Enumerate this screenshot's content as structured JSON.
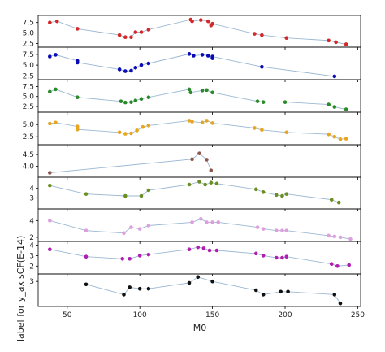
{
  "chart_data": {
    "type": "line",
    "xlabel": "M0",
    "ylabel": "label for y_axis",
    "ylabel_offset_text": "CF(E-14)",
    "x_ticks": [
      50,
      100,
      150,
      200,
      250
    ],
    "xlim": [
      30,
      252
    ],
    "grid": false,
    "line_color": "#9bb8d3",
    "panels": [
      {
        "color": "#d62728",
        "ylim": [
          2.0,
          8.8
        ],
        "yticks": [
          2.5,
          5.0,
          7.5
        ],
        "tick_labels": [
          "2.5",
          "5.0",
          "7.5"
        ],
        "points": [
          [
            38,
            7.5
          ],
          [
            43,
            7.8
          ],
          [
            57,
            6.0
          ],
          [
            86,
            4.5
          ],
          [
            90,
            4.0
          ],
          [
            94,
            4.0
          ],
          [
            97,
            5.2
          ],
          [
            101,
            5.2
          ],
          [
            106,
            5.8
          ],
          [
            135,
            8.2
          ],
          [
            136,
            7.8
          ],
          [
            142,
            8.1
          ],
          [
            147,
            7.8
          ],
          [
            149,
            6.8
          ],
          [
            150,
            7.2
          ],
          [
            179,
            4.8
          ],
          [
            184,
            4.5
          ],
          [
            201,
            3.8
          ],
          [
            230,
            3.2
          ],
          [
            235,
            2.8
          ],
          [
            242,
            2.3
          ]
        ]
      },
      {
        "color": "#0b0bb5",
        "ylim": [
          2.0,
          8.8
        ],
        "yticks": [
          2.5,
          5.0,
          7.5
        ],
        "tick_labels": [
          "2.5",
          "5.0",
          "7.5"
        ],
        "points": [
          [
            38,
            7.0
          ],
          [
            42,
            7.4
          ],
          [
            57,
            6.0
          ],
          [
            57,
            5.6
          ],
          [
            86,
            4.0
          ],
          [
            90,
            3.6
          ],
          [
            94,
            3.7
          ],
          [
            97,
            4.4
          ],
          [
            101,
            5.0
          ],
          [
            106,
            5.4
          ],
          [
            134,
            7.6
          ],
          [
            137,
            7.2
          ],
          [
            143,
            7.4
          ],
          [
            147,
            7.2
          ],
          [
            150,
            6.6
          ],
          [
            150,
            7.0
          ],
          [
            184,
            4.6
          ],
          [
            234,
            2.4
          ]
        ]
      },
      {
        "color": "#2a8a2a",
        "ylim": [
          1.5,
          8.8
        ],
        "yticks": [
          2.5,
          5.0,
          7.5
        ],
        "tick_labels": [
          "2.5",
          "5.0",
          "7.5"
        ],
        "points": [
          [
            38,
            6.2
          ],
          [
            42,
            6.8
          ],
          [
            57,
            4.8
          ],
          [
            87,
            3.8
          ],
          [
            90,
            3.5
          ],
          [
            94,
            3.6
          ],
          [
            97,
            4.0
          ],
          [
            101,
            4.4
          ],
          [
            106,
            4.8
          ],
          [
            134,
            6.8
          ],
          [
            135,
            6.0
          ],
          [
            143,
            6.5
          ],
          [
            146,
            6.6
          ],
          [
            150,
            6.0
          ],
          [
            181,
            3.8
          ],
          [
            185,
            3.6
          ],
          [
            200,
            3.6
          ],
          [
            230,
            3.0
          ],
          [
            234,
            2.4
          ],
          [
            242,
            1.8
          ]
        ]
      },
      {
        "color": "#e8a520",
        "ylim": [
          1.2,
          7.2
        ],
        "yticks": [
          2.5,
          5.0
        ],
        "tick_labels": [
          "2.5",
          "5.0"
        ],
        "points": [
          [
            38,
            5.2
          ],
          [
            42,
            5.4
          ],
          [
            57,
            4.6
          ],
          [
            57,
            4.0
          ],
          [
            86,
            3.4
          ],
          [
            90,
            3.1
          ],
          [
            94,
            3.2
          ],
          [
            98,
            3.8
          ],
          [
            102,
            4.5
          ],
          [
            106,
            4.8
          ],
          [
            134,
            5.8
          ],
          [
            136,
            5.6
          ],
          [
            143,
            5.4
          ],
          [
            146,
            5.8
          ],
          [
            150,
            5.3
          ],
          [
            179,
            4.3
          ],
          [
            184,
            3.9
          ],
          [
            201,
            3.4
          ],
          [
            230,
            3.0
          ],
          [
            234,
            2.5
          ],
          [
            238,
            2.0
          ],
          [
            242,
            2.1
          ]
        ]
      },
      {
        "color": "#8c564b",
        "ylim": [
          3.6,
          4.85
        ],
        "yticks": [
          4.0,
          4.5
        ],
        "tick_labels": [
          "4.0",
          "4.5"
        ],
        "points": [
          [
            38,
            3.72
          ],
          [
            136,
            4.3
          ],
          [
            141,
            4.55
          ],
          [
            146,
            4.28
          ],
          [
            149,
            3.82
          ]
        ]
      },
      {
        "color": "#6b8e23",
        "ylim": [
          2.0,
          5.0
        ],
        "yticks": [
          3,
          4
        ],
        "tick_labels": [
          "3",
          "4"
        ],
        "points": [
          [
            38,
            4.3
          ],
          [
            63,
            3.4
          ],
          [
            90,
            3.2
          ],
          [
            101,
            3.2
          ],
          [
            106,
            3.8
          ],
          [
            134,
            4.4
          ],
          [
            141,
            4.7
          ],
          [
            145,
            4.4
          ],
          [
            149,
            4.6
          ],
          [
            153,
            4.5
          ],
          [
            180,
            3.9
          ],
          [
            185,
            3.6
          ],
          [
            194,
            3.3
          ],
          [
            198,
            3.2
          ],
          [
            201,
            3.4
          ],
          [
            232,
            2.8
          ],
          [
            237,
            2.5
          ]
        ]
      },
      {
        "color": "#dda0dd",
        "ylim": [
          1.7,
          5.2
        ],
        "yticks": [
          2,
          4
        ],
        "tick_labels": [
          "2",
          "4"
        ],
        "points": [
          [
            38,
            4.0
          ],
          [
            63,
            2.8
          ],
          [
            89,
            2.5
          ],
          [
            94,
            3.2
          ],
          [
            100,
            3.0
          ],
          [
            106,
            3.4
          ],
          [
            136,
            3.8
          ],
          [
            142,
            4.2
          ],
          [
            146,
            3.8
          ],
          [
            150,
            3.8
          ],
          [
            154,
            3.8
          ],
          [
            181,
            3.2
          ],
          [
            185,
            3.0
          ],
          [
            194,
            2.8
          ],
          [
            198,
            2.8
          ],
          [
            201,
            2.8
          ],
          [
            230,
            2.2
          ],
          [
            234,
            2.1
          ],
          [
            238,
            2.0
          ],
          [
            245,
            1.8
          ]
        ]
      },
      {
        "color": "#b01eb0",
        "ylim": [
          1.4,
          4.2
        ],
        "yticks": [
          2,
          3,
          4
        ],
        "tick_labels": [
          "2",
          "3",
          "4"
        ],
        "points": [
          [
            38,
            3.6
          ],
          [
            63,
            2.9
          ],
          [
            88,
            2.7
          ],
          [
            93,
            2.7
          ],
          [
            100,
            3.0
          ],
          [
            106,
            3.1
          ],
          [
            134,
            3.6
          ],
          [
            140,
            3.8
          ],
          [
            144,
            3.7
          ],
          [
            148,
            3.5
          ],
          [
            153,
            3.5
          ],
          [
            180,
            3.2
          ],
          [
            185,
            3.0
          ],
          [
            194,
            2.8
          ],
          [
            198,
            2.8
          ],
          [
            201,
            2.9
          ],
          [
            232,
            2.2
          ],
          [
            236,
            2.0
          ],
          [
            244,
            2.1
          ]
        ]
      },
      {
        "color": "#111111",
        "ylim": [
          1.4,
          3.4
        ],
        "yticks": [
          3
        ],
        "tick_labels": [
          "3"
        ],
        "points": [
          [
            63,
            2.8
          ],
          [
            89,
            2.1
          ],
          [
            93,
            2.6
          ],
          [
            100,
            2.5
          ],
          [
            106,
            2.5
          ],
          [
            134,
            2.9
          ],
          [
            140,
            3.3
          ],
          [
            150,
            3.0
          ],
          [
            180,
            2.4
          ],
          [
            185,
            2.1
          ],
          [
            197,
            2.3
          ],
          [
            202,
            2.3
          ],
          [
            234,
            2.1
          ],
          [
            238,
            1.5
          ]
        ]
      }
    ]
  }
}
